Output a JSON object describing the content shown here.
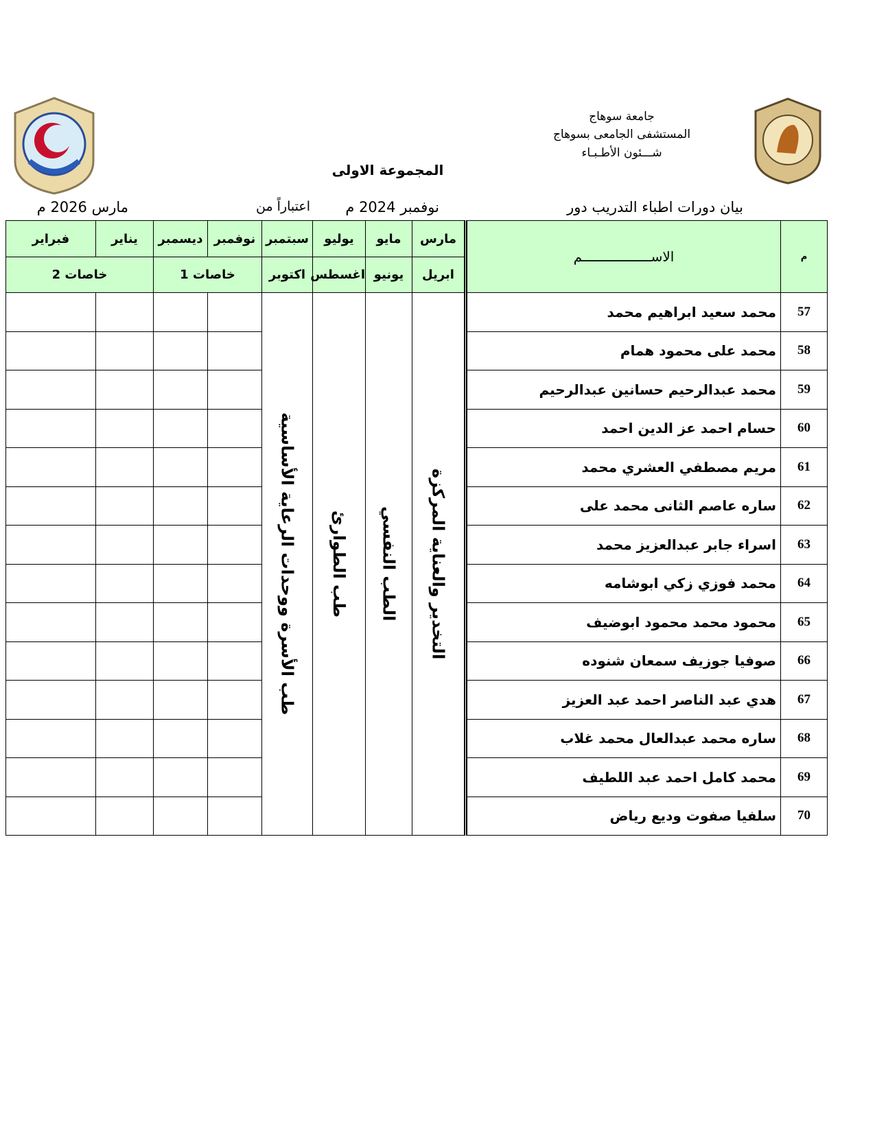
{
  "header": {
    "university": "جامعة سوهاج",
    "hospital": "المستشفى الجامعى بسوهاج",
    "department": "شـــئون الأطـبـاء"
  },
  "title": "المجموعة الاولى",
  "subtitle": {
    "statement": "بيان دورات اطباء التدريب دور",
    "round": "نوفمبر 2024 م",
    "from_label": "اعتباراً من",
    "from_date": "مارس 2026 م"
  },
  "table": {
    "headers": {
      "number": "م",
      "name": "الاســـــــــــــــــم",
      "months_top": [
        "مارس",
        "مايو",
        "يوليو",
        "سبتمبر",
        "نوفمبر",
        "ديسمبر",
        "يناير",
        "فبراير"
      ],
      "months_bottom": [
        "ابريل",
        "يونيو",
        "اغسطس",
        "اكتوبر"
      ],
      "electives": [
        "خاصات 1",
        "خاصات 2"
      ]
    },
    "rotations": [
      "التخدير والعناية المركزة",
      "الطب النفسي",
      "طب الطوارئ",
      "طب الأسرة ووحدات الرعاية الأساسية"
    ],
    "rows": [
      [
        57,
        "محمد سعيد ابراهيم محمد"
      ],
      [
        58,
        "محمد على محمود همام"
      ],
      [
        59,
        "محمد عبدالرحيم حسانين عبدالرحيم"
      ],
      [
        60,
        "حسام احمد عز الدين احمد"
      ],
      [
        61,
        "مريم مصطفي العشري محمد"
      ],
      [
        62,
        "ساره عاصم الثانى محمد على"
      ],
      [
        63,
        "اسراء جابر عبدالعزيز محمد"
      ],
      [
        64,
        "محمد فوزي زكي ابوشامه"
      ],
      [
        65,
        "محمود محمد محمود ابوضيف"
      ],
      [
        66,
        "صوفيا جوزيف سمعان شنوده"
      ],
      [
        67,
        "هدي عبد الناصر احمد عبد العزيز"
      ],
      [
        68,
        "ساره محمد عبدالعال محمد غلاب"
      ],
      [
        69,
        "محمد كامل احمد عبد اللطيف"
      ],
      [
        70,
        "سلفيا صفوت وديع رياض"
      ]
    ]
  }
}
